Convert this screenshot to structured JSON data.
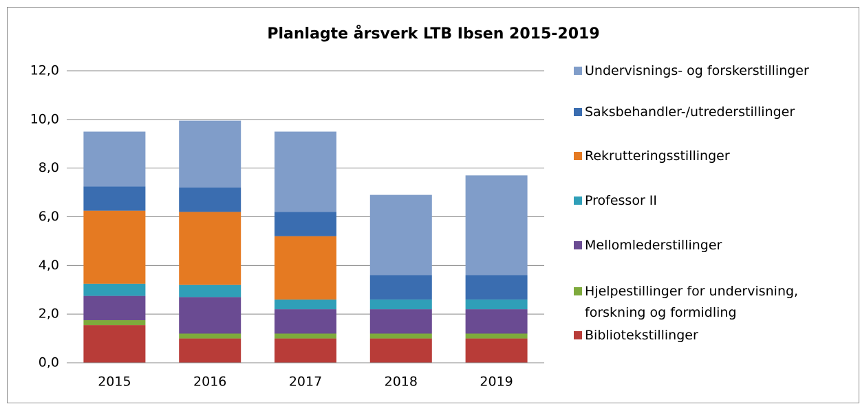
{
  "chart_data": {
    "type": "stacked_bar",
    "title": "Planlagte årsverk LTB Ibsen 2015-2019",
    "categories": [
      "2015",
      "2016",
      "2017",
      "2018",
      "2019"
    ],
    "series": [
      {
        "name": "Bibliotekstillinger",
        "color": "#b83c38",
        "values": [
          1.55,
          1.0,
          1.0,
          1.0,
          1.0
        ]
      },
      {
        "name": "Hjelpestillinger for undervisning, forskning og formidling",
        "color": "#7eaa3c",
        "values": [
          0.2,
          0.2,
          0.2,
          0.2,
          0.2
        ]
      },
      {
        "name": "Mellomlederstillinger",
        "color": "#6a4b92",
        "values": [
          1.0,
          1.5,
          1.0,
          1.0,
          1.0
        ]
      },
      {
        "name": "Professor II",
        "color": "#2f9fb8",
        "values": [
          0.5,
          0.5,
          0.4,
          0.4,
          0.4
        ]
      },
      {
        "name": "Rekrutteringsstillinger",
        "color": "#e57a22",
        "values": [
          3.0,
          3.0,
          2.6,
          0,
          0
        ]
      },
      {
        "name": "Saksbehandler-/utrederstillinger",
        "color": "#3a6db0",
        "values": [
          1.0,
          1.0,
          1.0,
          1.0,
          1.0
        ]
      },
      {
        "name": "Undervisnings- og forskerstillinger",
        "color": "#809dc9",
        "values": [
          2.25,
          2.75,
          3.3,
          3.3,
          4.1
        ]
      }
    ],
    "ylim": [
      0,
      12
    ],
    "yticks": [
      {
        "value": 0,
        "label": "0,0"
      },
      {
        "value": 2,
        "label": "2,0"
      },
      {
        "value": 4,
        "label": "4,0"
      },
      {
        "value": 6,
        "label": "6,0"
      },
      {
        "value": 8,
        "label": "8,0"
      },
      {
        "value": 10,
        "label": "10,0"
      },
      {
        "value": 12,
        "label": "12,0"
      }
    ],
    "grid": true
  }
}
